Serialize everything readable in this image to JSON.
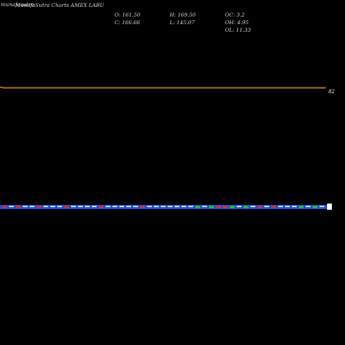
{
  "header": {
    "watermark": "munafasutra",
    "title": "MunafaSutra Charts AMEX LABU",
    "stats": {
      "open": "O: 161.50",
      "close": "C: 166.66",
      "high": "H: 169.50",
      "low": "L: 145.07",
      "oc": "OC: 3.2",
      "oh": "OH: 4.95",
      "ol": "OL: 11.33"
    }
  },
  "price_tag": "82",
  "colors": {
    "background": "#000000",
    "price_line": "#e07b1c",
    "volume_band": "#1f4fd8",
    "up_volume": "#22cc22",
    "down_volume": "#d83030",
    "neutral_volume": "#ffffff"
  },
  "chart_data": {
    "type": "line",
    "title": "MunafaSutra Charts AMEX LABU",
    "last_price_label": "82",
    "price_values": [
      83,
      82,
      82,
      82,
      82,
      82,
      82,
      82,
      82,
      82,
      82,
      82,
      82,
      82,
      82,
      82,
      82,
      82,
      82,
      82,
      82,
      82,
      82,
      82,
      82,
      82,
      82,
      82,
      82,
      82,
      82,
      82,
      82,
      82,
      82,
      82,
      82,
      82,
      82,
      82,
      82,
      82,
      82,
      82,
      82,
      82,
      82,
      82,
      82,
      82,
      82,
      82,
      82,
      82,
      82,
      82,
      82,
      82,
      82,
      82,
      82,
      82,
      82,
      82,
      82,
      82,
      82,
      82,
      82,
      82,
      82,
      82,
      82,
      82,
      82,
      82,
      82,
      82,
      82,
      82,
      82,
      82,
      82,
      82,
      82,
      82,
      82,
      82,
      82,
      82,
      82,
      82,
      82
    ],
    "volume_direction": [
      "red",
      "white",
      "red",
      "white",
      "white",
      "red",
      "white",
      "white",
      "white",
      "red",
      "white",
      "white",
      "white",
      "white",
      "red",
      "white",
      "white",
      "white",
      "white",
      "white",
      "red",
      "white",
      "white",
      "white",
      "white",
      "white",
      "white",
      "white",
      "green",
      "white",
      "green",
      "red",
      "red",
      "green",
      "white",
      "green",
      "white",
      "red",
      "white",
      "red",
      "white",
      "white",
      "white",
      "green",
      "white",
      "green",
      "white"
    ]
  }
}
